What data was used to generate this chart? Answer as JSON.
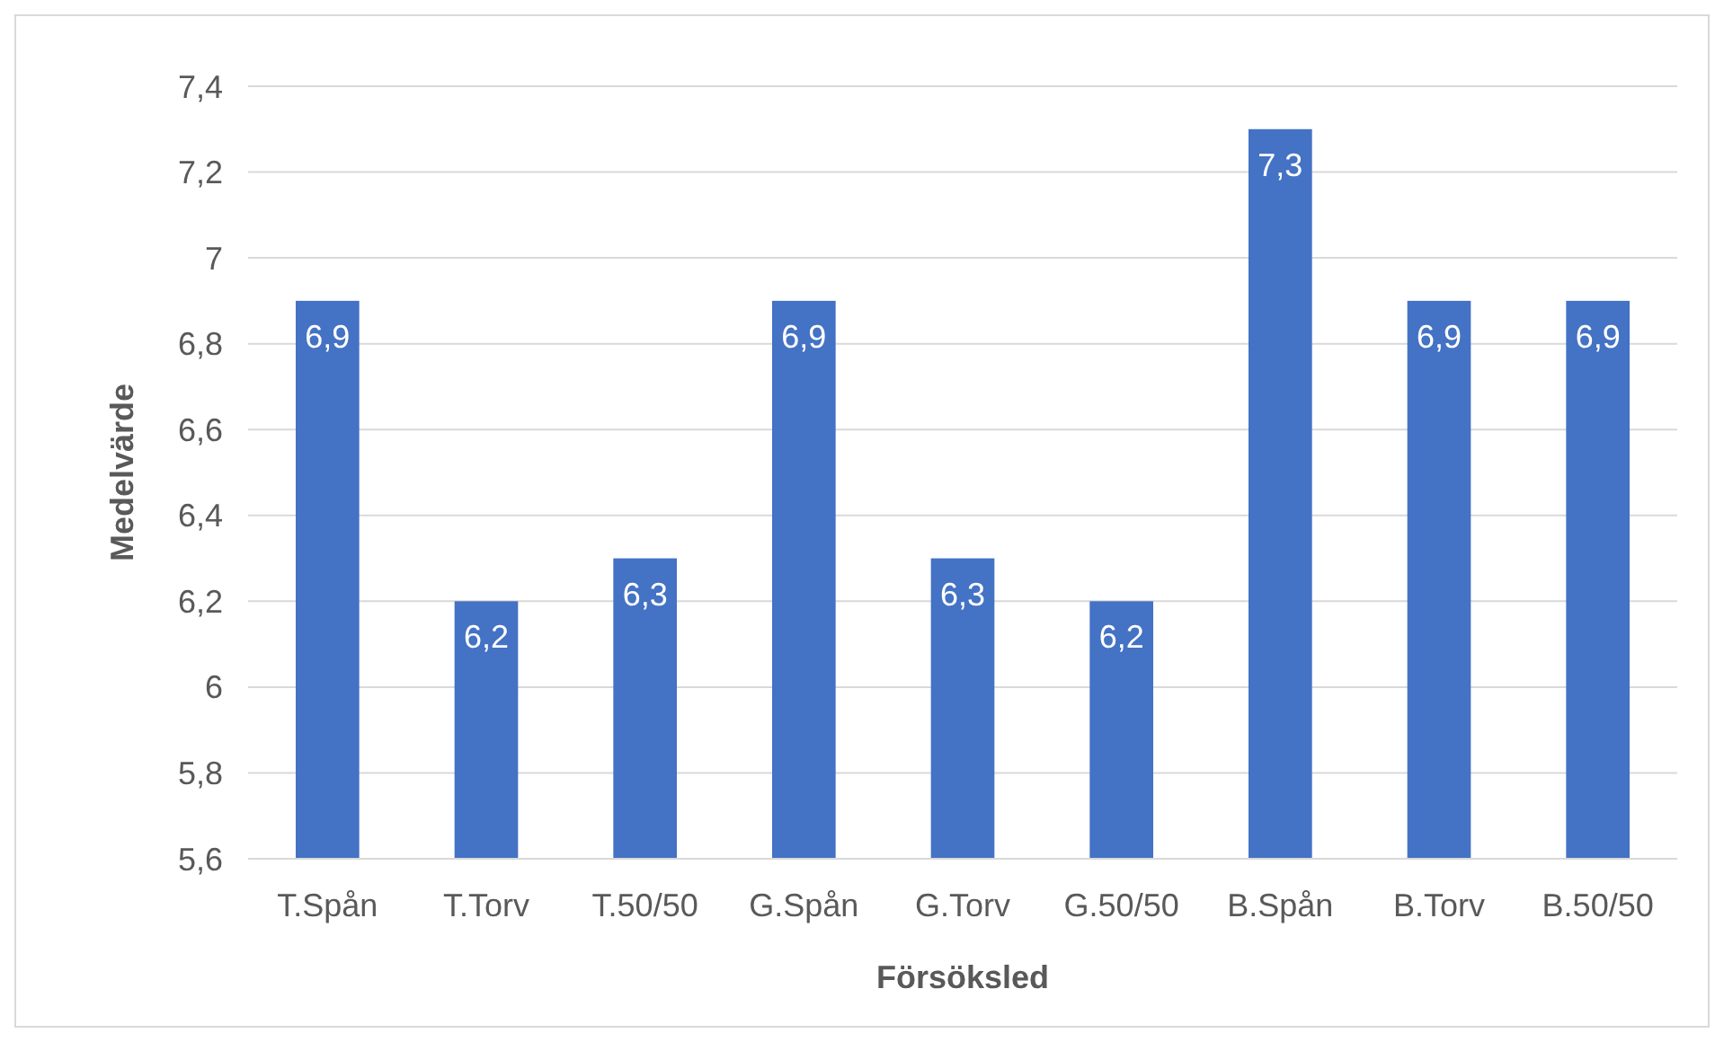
{
  "chart_data": {
    "type": "bar",
    "xlabel": "Försöksled",
    "ylabel": "Medelvärde",
    "categories": [
      "T.Spån",
      "T.Torv",
      "T.50/50",
      "G.Spån",
      "G.Torv",
      "G.50/50",
      "B.Spån",
      "B.Torv",
      "B.50/50"
    ],
    "values": [
      6.9,
      6.2,
      6.3,
      6.9,
      6.3,
      6.2,
      7.3,
      6.9,
      6.9
    ],
    "value_labels": [
      "6,9",
      "6,2",
      "6,3",
      "6,9",
      "6,3",
      "6,2",
      "7,3",
      "6,9",
      "6,9"
    ],
    "color": "#4472c4",
    "ylim": [
      5.6,
      7.4
    ],
    "yticks": [
      {
        "value": 5.6,
        "label": "5,6"
      },
      {
        "value": 5.8,
        "label": "5,8"
      },
      6,
      {
        "value": 6.2,
        "label": "6,2"
      },
      {
        "value": 6.4,
        "label": "6,4"
      },
      {
        "value": 6.6,
        "label": "6,6"
      },
      {
        "value": 6.8,
        "label": "6,8"
      },
      7,
      {
        "value": 7.2,
        "label": "7,2"
      },
      {
        "value": 7.4,
        "label": "7,4"
      }
    ],
    "grid": "y"
  }
}
